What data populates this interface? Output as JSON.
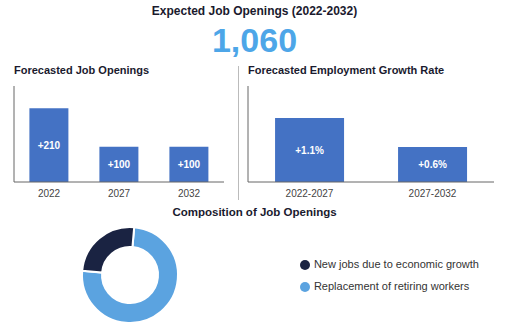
{
  "title": "Expected Job Openings (2022-2032)",
  "annotations": [
    {
      "text": "1,060",
      "color": "#4da6e8"
    }
  ],
  "chart_data": [
    {
      "type": "bar",
      "title": "Forecasted Job Openings",
      "categories": [
        "2022",
        "2027",
        "2032"
      ],
      "values": [
        210,
        100,
        100
      ],
      "value_labels": [
        "+210",
        "+100",
        "+100"
      ],
      "data_labels": true,
      "color": "#4472c4",
      "ylim": [
        0,
        273
      ],
      "tick_labels": "x",
      "grid": false
    },
    {
      "type": "bar",
      "title": "Forecasted Employment Growth Rate",
      "categories": [
        "2022-2027",
        "2027-2032"
      ],
      "values": [
        1.1,
        0.6
      ],
      "value_labels": [
        "+1.1%",
        "+0.6%"
      ],
      "data_labels": true,
      "color": "#4472c4",
      "ylim": [
        0,
        1.65
      ],
      "tick_labels": "x",
      "grid": false
    },
    {
      "type": "pie",
      "title": "Composition of Job Openings",
      "categories": [
        "Replacement of retiring workers",
        "New jobs due to economic growth"
      ],
      "values": [
        75,
        25
      ],
      "colors": [
        "#5ba3e0",
        "#1a2342"
      ],
      "legend": "right"
    }
  ]
}
